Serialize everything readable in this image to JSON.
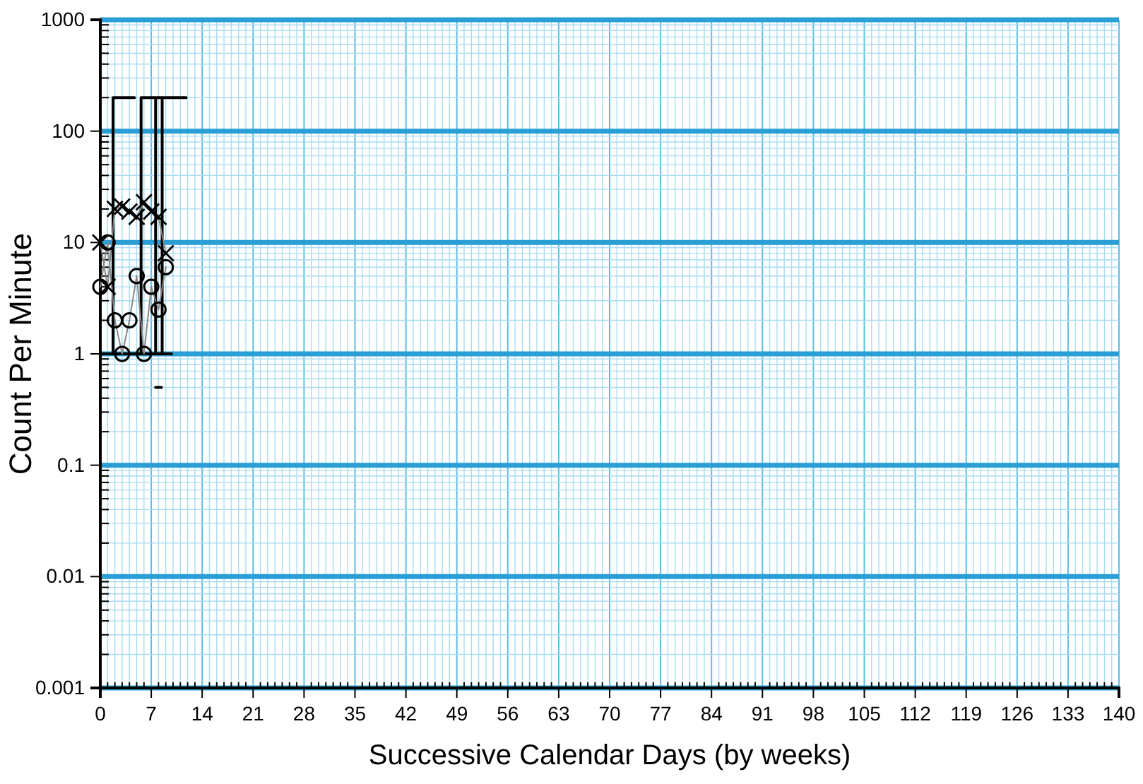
{
  "chart_data": {
    "type": "line",
    "xlabel": "Successive Calendar Days (by weeks)",
    "ylabel": "Count Per Minute",
    "log": true,
    "grid": true,
    "xlim": [
      0,
      140
    ],
    "xticks": [
      0,
      {
        "value": 1,
        "label": null
      },
      {
        "value": 2,
        "label": null
      },
      {
        "value": 3,
        "label": null
      },
      {
        "value": 4,
        "label": null
      },
      {
        "value": 5,
        "label": null
      },
      {
        "value": 6,
        "label": null
      },
      7,
      {
        "value": 8,
        "label": null
      },
      {
        "value": 9,
        "label": null
      },
      {
        "value": 10,
        "label": null
      },
      {
        "value": 11,
        "label": null
      },
      {
        "value": 12,
        "label": null
      },
      {
        "value": 13,
        "label": null
      },
      14,
      {
        "value": 15,
        "label": null
      },
      {
        "value": 16,
        "label": null
      },
      {
        "value": 17,
        "label": null
      },
      {
        "value": 18,
        "label": null
      },
      {
        "value": 19,
        "label": null
      },
      {
        "value": 20,
        "label": null
      },
      21,
      {
        "value": 22,
        "label": null
      },
      {
        "value": 23,
        "label": null
      },
      {
        "value": 24,
        "label": null
      },
      {
        "value": 25,
        "label": null
      },
      {
        "value": 26,
        "label": null
      },
      {
        "value": 27,
        "label": null
      },
      28,
      {
        "value": 29,
        "label": null
      },
      {
        "value": 30,
        "label": null
      },
      {
        "value": 31,
        "label": null
      },
      {
        "value": 32,
        "label": null
      },
      {
        "value": 33,
        "label": null
      },
      {
        "value": 34,
        "label": null
      },
      35,
      {
        "value": 36,
        "label": null
      },
      {
        "value": 37,
        "label": null
      },
      {
        "value": 38,
        "label": null
      },
      {
        "value": 39,
        "label": null
      },
      {
        "value": 40,
        "label": null
      },
      {
        "value": 41,
        "label": null
      },
      42,
      {
        "value": 43,
        "label": null
      },
      {
        "value": 44,
        "label": null
      },
      {
        "value": 45,
        "label": null
      },
      {
        "value": 46,
        "label": null
      },
      {
        "value": 47,
        "label": null
      },
      {
        "value": 48,
        "label": null
      },
      49,
      {
        "value": 50,
        "label": null
      },
      {
        "value": 51,
        "label": null
      },
      {
        "value": 52,
        "label": null
      },
      {
        "value": 53,
        "label": null
      },
      {
        "value": 54,
        "label": null
      },
      {
        "value": 55,
        "label": null
      },
      56,
      {
        "value": 57,
        "label": null
      },
      {
        "value": 58,
        "label": null
      },
      {
        "value": 59,
        "label": null
      },
      {
        "value": 60,
        "label": null
      },
      {
        "value": 61,
        "label": null
      },
      {
        "value": 62,
        "label": null
      },
      63,
      {
        "value": 64,
        "label": null
      },
      {
        "value": 65,
        "label": null
      },
      {
        "value": 66,
        "label": null
      },
      {
        "value": 67,
        "label": null
      },
      {
        "value": 68,
        "label": null
      },
      {
        "value": 69,
        "label": null
      },
      70,
      {
        "value": 71,
        "label": null
      },
      {
        "value": 72,
        "label": null
      },
      {
        "value": 73,
        "label": null
      },
      {
        "value": 74,
        "label": null
      },
      {
        "value": 75,
        "label": null
      },
      {
        "value": 76,
        "label": null
      },
      77,
      {
        "value": 78,
        "label": null
      },
      {
        "value": 79,
        "label": null
      },
      {
        "value": 80,
        "label": null
      },
      {
        "value": 81,
        "label": null
      },
      {
        "value": 82,
        "label": null
      },
      {
        "value": 83,
        "label": null
      },
      84,
      {
        "value": 85,
        "label": null
      },
      {
        "value": 86,
        "label": null
      },
      {
        "value": 87,
        "label": null
      },
      {
        "value": 88,
        "label": null
      },
      {
        "value": 89,
        "label": null
      },
      {
        "value": 90,
        "label": null
      },
      91,
      {
        "value": 92,
        "label": null
      },
      {
        "value": 93,
        "label": null
      },
      {
        "value": 94,
        "label": null
      },
      {
        "value": 95,
        "label": null
      },
      {
        "value": 96,
        "label": null
      },
      {
        "value": 97,
        "label": null
      },
      98,
      {
        "value": 99,
        "label": null
      },
      {
        "value": 100,
        "label": null
      },
      {
        "value": 101,
        "label": null
      },
      {
        "value": 102,
        "label": null
      },
      {
        "value": 103,
        "label": null
      },
      {
        "value": 104,
        "label": null
      },
      105,
      {
        "value": 106,
        "label": null
      },
      {
        "value": 107,
        "label": null
      },
      {
        "value": 108,
        "label": null
      },
      {
        "value": 109,
        "label": null
      },
      {
        "value": 110,
        "label": null
      },
      {
        "value": 111,
        "label": null
      },
      112,
      {
        "value": 113,
        "label": null
      },
      {
        "value": 114,
        "label": null
      },
      {
        "value": 115,
        "label": null
      },
      {
        "value": 116,
        "label": null
      },
      {
        "value": 117,
        "label": null
      },
      {
        "value": 118,
        "label": null
      },
      119,
      {
        "value": 120,
        "label": null
      },
      {
        "value": 121,
        "label": null
      },
      {
        "value": 122,
        "label": null
      },
      {
        "value": 123,
        "label": null
      },
      {
        "value": 124,
        "label": null
      },
      {
        "value": 125,
        "label": null
      },
      126,
      {
        "value": 127,
        "label": null
      },
      {
        "value": 128,
        "label": null
      },
      {
        "value": 129,
        "label": null
      },
      {
        "value": 130,
        "label": null
      },
      {
        "value": 131,
        "label": null
      },
      {
        "value": 132,
        "label": null
      },
      133,
      {
        "value": 134,
        "label": null
      },
      {
        "value": 135,
        "label": null
      },
      {
        "value": 136,
        "label": null
      },
      {
        "value": 137,
        "label": null
      },
      {
        "value": 138,
        "label": null
      },
      {
        "value": 139,
        "label": null
      },
      140
    ],
    "ylim": [
      0.001,
      1000
    ],
    "yticks": [
      0.001,
      {
        "value": 0.002,
        "label": null
      },
      {
        "value": 0.003,
        "label": null
      },
      {
        "value": 0.004,
        "label": null
      },
      {
        "value": 0.005,
        "label": null
      },
      {
        "value": 0.006,
        "label": null
      },
      {
        "value": 0.007,
        "label": null
      },
      {
        "value": 0.008,
        "label": null
      },
      {
        "value": 0.009,
        "label": null
      },
      0.01,
      {
        "value": 0.02,
        "label": null
      },
      {
        "value": 0.03,
        "label": null
      },
      {
        "value": 0.04,
        "label": null
      },
      {
        "value": 0.05,
        "label": null
      },
      {
        "value": 0.06,
        "label": null
      },
      {
        "value": 0.07,
        "label": null
      },
      {
        "value": 0.08,
        "label": null
      },
      {
        "value": 0.09,
        "label": null
      },
      0.1,
      {
        "value": 0.2,
        "label": null
      },
      {
        "value": 0.3,
        "label": null
      },
      {
        "value": 0.4,
        "label": null
      },
      {
        "value": 0.5,
        "label": null
      },
      {
        "value": 0.6,
        "label": null
      },
      {
        "value": 0.7,
        "label": null
      },
      {
        "value": 0.8,
        "label": null
      },
      {
        "value": 0.9,
        "label": null
      },
      1,
      {
        "value": 2,
        "label": null
      },
      {
        "value": 3,
        "label": null
      },
      {
        "value": 4,
        "label": null
      },
      {
        "value": 5,
        "label": null
      },
      {
        "value": 6,
        "label": null
      },
      {
        "value": 7,
        "label": null
      },
      {
        "value": 8,
        "label": null
      },
      {
        "value": 9,
        "label": null
      },
      10,
      {
        "value": 20,
        "label": null
      },
      {
        "value": 30,
        "label": null
      },
      {
        "value": 40,
        "label": null
      },
      {
        "value": 50,
        "label": null
      },
      {
        "value": 60,
        "label": null
      },
      {
        "value": 70,
        "label": null
      },
      {
        "value": 80,
        "label": null
      },
      {
        "value": 90,
        "label": null
      },
      100,
      {
        "value": 200,
        "label": null
      },
      {
        "value": 300,
        "label": null
      },
      {
        "value": 400,
        "label": null
      },
      {
        "value": 500,
        "label": null
      },
      {
        "value": 600,
        "label": null
      },
      {
        "value": 700,
        "label": null
      },
      {
        "value": 800,
        "label": null
      },
      {
        "value": 900,
        "label": null
      },
      1000
    ],
    "series": [
      {
        "color": "#000000",
        "marker": "none",
        "x": [
          1.75,
          1.75,
          4.7,
          null,
          0,
          9.8,
          null,
          5.6,
          5.6,
          11.8,
          null,
          7.6,
          7.6,
          null,
          8.5,
          8.5
        ],
        "values": [
          1,
          200,
          200,
          null,
          1,
          1,
          null,
          1,
          200,
          200,
          null,
          1,
          200,
          null,
          1,
          200
        ]
      },
      {
        "color": "#000000",
        "marker": "none",
        "x": [
          7.6,
          8.4
        ],
        "values": [
          0.5,
          0.5
        ]
      },
      {
        "color": "#888888",
        "marker": "circle",
        "x": [
          0,
          1,
          2,
          3,
          4,
          5,
          6,
          7,
          8,
          9
        ],
        "values": [
          4,
          10,
          2,
          1,
          2,
          5,
          1,
          4,
          2.5,
          6
        ]
      },
      {
        "color": "#888888",
        "marker": "cross",
        "x": [
          0,
          1,
          2,
          3,
          4,
          5,
          6,
          7,
          8,
          9
        ],
        "values": [
          10,
          4,
          20,
          21,
          19,
          17,
          23,
          19,
          17,
          8
        ]
      }
    ]
  }
}
